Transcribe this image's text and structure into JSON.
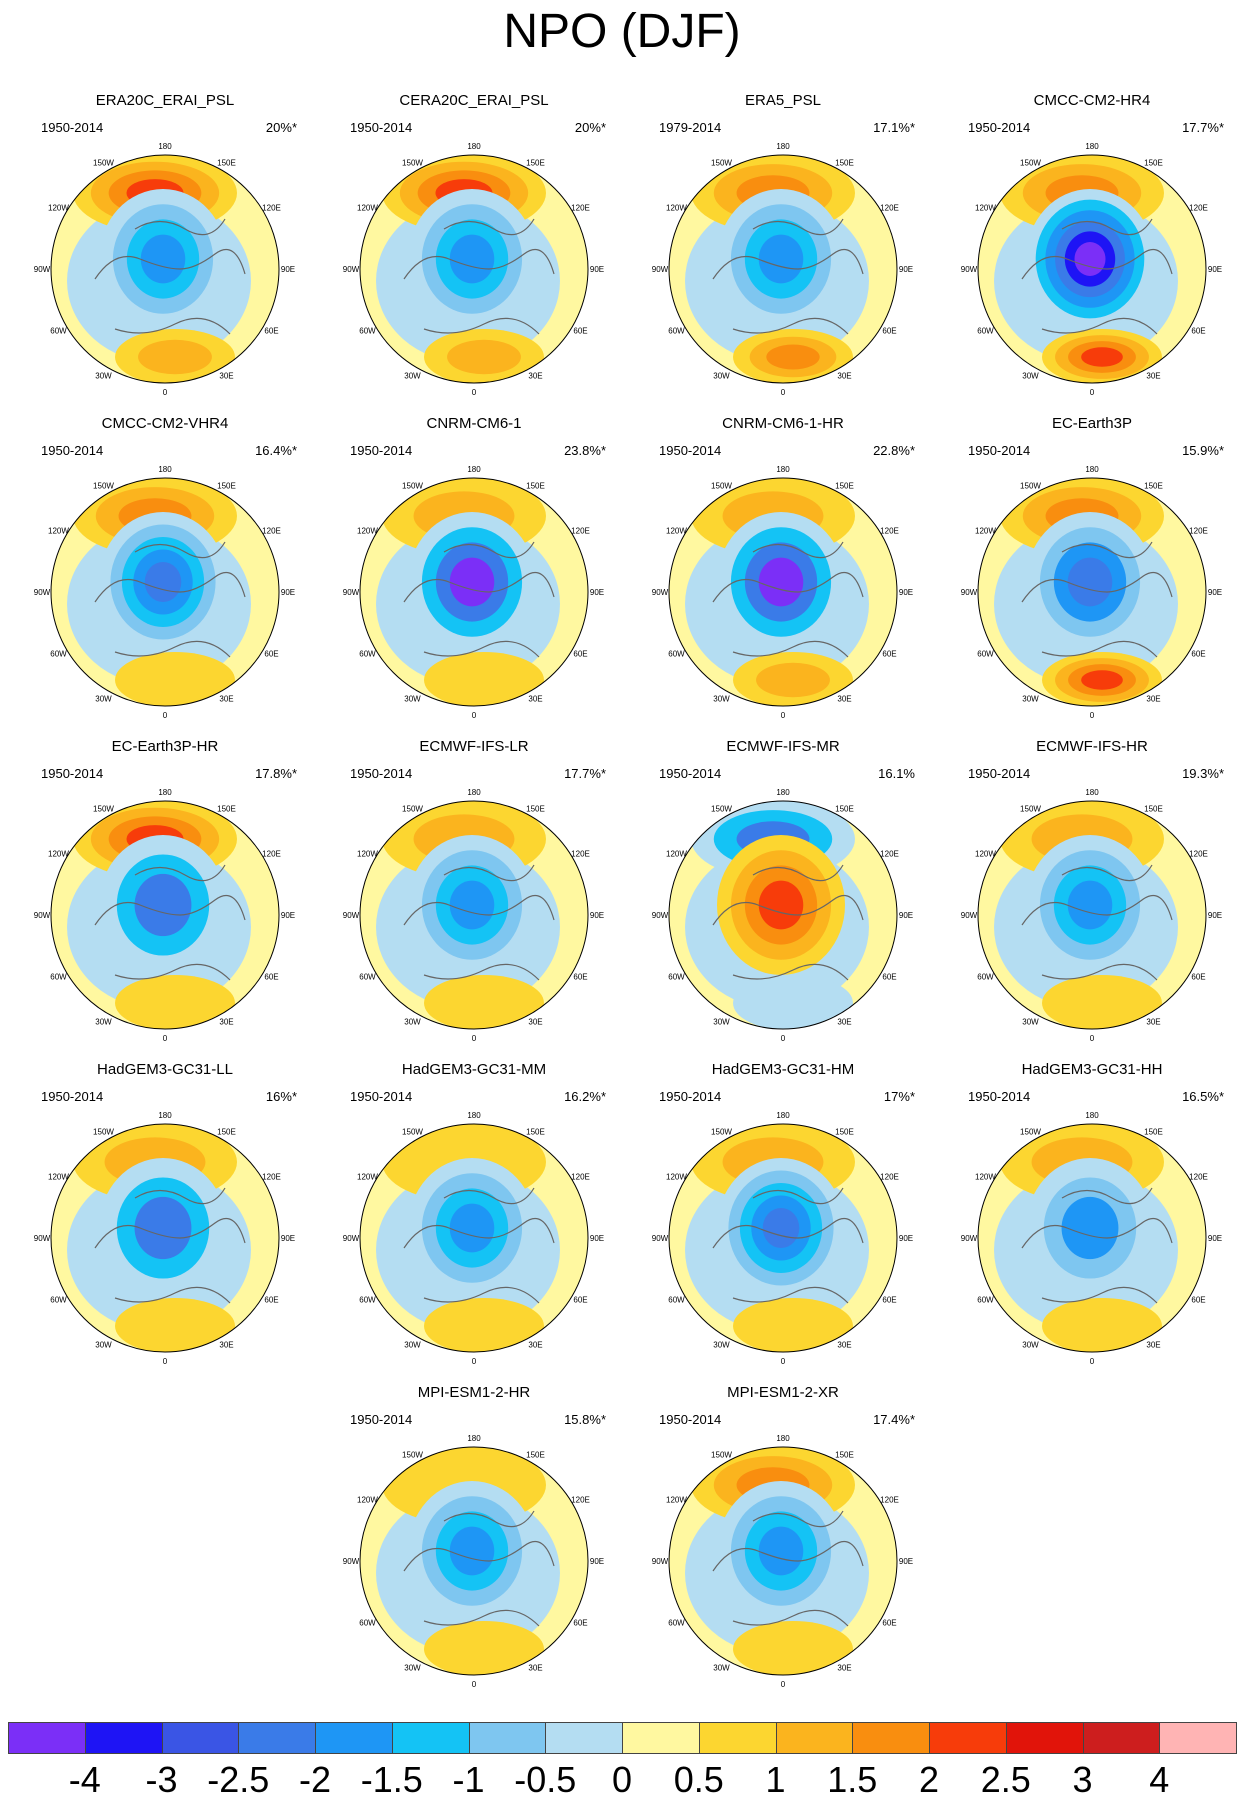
{
  "title": "NPO (DJF)",
  "colorbar": {
    "colors": [
      "#7b2ff7",
      "#1e14f5",
      "#3a55e5",
      "#3a7be8",
      "#1e96f5",
      "#14c3f5",
      "#7ec6f0",
      "#b4ddf2",
      "#fff8a0",
      "#fcd630",
      "#fbb41e",
      "#f98e0f",
      "#f73c0a",
      "#e1140a",
      "#cd1e1e",
      "#ffb4b4"
    ],
    "labels": [
      "-4",
      "-3",
      "-2.5",
      "-2",
      "-1.5",
      "-1",
      "-0.5",
      "0",
      "0.5",
      "1",
      "1.5",
      "2",
      "2.5",
      "3",
      "4"
    ]
  },
  "longitude_labels": [
    "180",
    "150E",
    "120E",
    "90E",
    "60E",
    "30E",
    "0",
    "30W",
    "60W",
    "90W",
    "120W",
    "150W"
  ],
  "panels": [
    {
      "name": "ERA20C_ERAI_PSL",
      "period": "1950-2014",
      "variance": "20%*"
    },
    {
      "name": "CERA20C_ERAI_PSL",
      "period": "1950-2014",
      "variance": "20%*"
    },
    {
      "name": "ERA5_PSL",
      "period": "1979-2014",
      "variance": "17.1%*"
    },
    {
      "name": "CMCC-CM2-HR4",
      "period": "1950-2014",
      "variance": "17.7%*"
    },
    {
      "name": "CMCC-CM2-VHR4",
      "period": "1950-2014",
      "variance": "16.4%*"
    },
    {
      "name": "CNRM-CM6-1",
      "period": "1950-2014",
      "variance": "23.8%*"
    },
    {
      "name": "CNRM-CM6-1-HR",
      "period": "1950-2014",
      "variance": "22.8%*"
    },
    {
      "name": "EC-Earth3P",
      "period": "1950-2014",
      "variance": "15.9%*"
    },
    {
      "name": "EC-Earth3P-HR",
      "period": "1950-2014",
      "variance": "17.8%*"
    },
    {
      "name": "ECMWF-IFS-LR",
      "period": "1950-2014",
      "variance": "17.7%*"
    },
    {
      "name": "ECMWF-IFS-MR",
      "period": "1950-2014",
      "variance": "16.1%"
    },
    {
      "name": "ECMWF-IFS-HR",
      "period": "1950-2014",
      "variance": "19.3%*"
    },
    {
      "name": "HadGEM3-GC31-LL",
      "period": "1950-2014",
      "variance": "16%*"
    },
    {
      "name": "HadGEM3-GC31-MM",
      "period": "1950-2014",
      "variance": "16.2%*"
    },
    {
      "name": "HadGEM3-GC31-HM",
      "period": "1950-2014",
      "variance": "17%*"
    },
    {
      "name": "HadGEM3-GC31-HH",
      "period": "1950-2014",
      "variance": "16.5%*"
    },
    {
      "name": "MPI-ESM1-2-HR",
      "period": "1950-2014",
      "variance": "15.8%*"
    },
    {
      "name": "MPI-ESM1-2-XR",
      "period": "1950-2014",
      "variance": "17.4%*"
    }
  ]
}
